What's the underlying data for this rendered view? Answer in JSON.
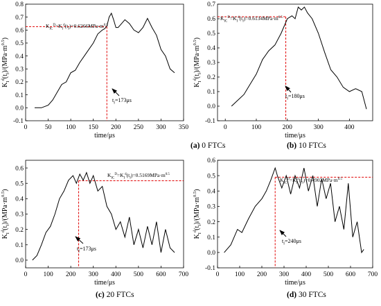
{
  "figure": {
    "panels": [
      {
        "caption_letter": "(a)",
        "caption_text": " 0 FTCs"
      },
      {
        "caption_letter": "(b)",
        "caption_text": " 10 FTCs"
      },
      {
        "caption_letter": "(c)",
        "caption_text": " 20 FTCs"
      },
      {
        "caption_letter": "(d)",
        "caption_text": " 30 FTCs"
      }
    ]
  },
  "chart_data": [
    {
      "type": "line",
      "ylabel": "K_I^d(t_f)/(MPa·m^0.5)",
      "xlabel": "time/μs",
      "xlim": [
        0,
        350
      ],
      "ylim": [
        -0.1,
        0.8
      ],
      "xticks": [
        0,
        50,
        100,
        150,
        200,
        250,
        300,
        350
      ],
      "yticks": [
        -0.1,
        0.0,
        0.1,
        0.2,
        0.3,
        0.4,
        0.5,
        0.6,
        0.7,
        0.8
      ],
      "series": [
        {
          "x": [
            20,
            35,
            50,
            60,
            70,
            80,
            90,
            100,
            110,
            120,
            130,
            140,
            150,
            160,
            170,
            175,
            180,
            185,
            190,
            195,
            200,
            205,
            210,
            220,
            230,
            240,
            250,
            260,
            270,
            280,
            290,
            300,
            310,
            320,
            330
          ],
          "y": [
            0.0,
            0.0,
            0.02,
            0.06,
            0.12,
            0.18,
            0.2,
            0.27,
            0.29,
            0.35,
            0.4,
            0.45,
            0.5,
            0.57,
            0.6,
            0.61,
            0.63,
            0.7,
            0.73,
            0.68,
            0.62,
            0.62,
            0.64,
            0.68,
            0.65,
            0.6,
            0.58,
            0.62,
            0.69,
            0.62,
            0.56,
            0.45,
            0.4,
            0.3,
            0.27
          ]
        }
      ],
      "annotations": {
        "equation": "K_IC^D=K_I^d(t_f)=0.6266MPa·m^0.5",
        "tf_label": "t_f=173μs",
        "tf_x": 180,
        "kic_y": 0.6266
      }
    },
    {
      "type": "line",
      "ylabel": "K_I^d(t_f)/(MPa·m^0.5)",
      "xlabel": "time/μs",
      "xlim": [
        -25,
        475
      ],
      "ylim": [
        -0.1,
        0.7
      ],
      "xticks": [
        0,
        100,
        200,
        300,
        400
      ],
      "yticks": [
        -0.1,
        0.0,
        0.1,
        0.2,
        0.3,
        0.4,
        0.5,
        0.6,
        0.7
      ],
      "series": [
        {
          "x": [
            20,
            40,
            60,
            80,
            100,
            120,
            140,
            160,
            180,
            200,
            215,
            225,
            235,
            245,
            255,
            265,
            280,
            300,
            320,
            340,
            360,
            380,
            400,
            420,
            440,
            455
          ],
          "y": [
            0.0,
            0.04,
            0.08,
            0.15,
            0.22,
            0.32,
            0.38,
            0.42,
            0.5,
            0.6,
            0.62,
            0.6,
            0.68,
            0.66,
            0.68,
            0.64,
            0.6,
            0.5,
            0.37,
            0.25,
            0.2,
            0.13,
            0.1,
            0.12,
            0.1,
            -0.02
          ]
        }
      ],
      "annotations": {
        "equation": "K_IC^D=K_I^d(t_f)=0.6134MPa·m^0.5",
        "tf_label": "t_f=180μs",
        "tf_x": 195,
        "kic_y": 0.6134
      }
    },
    {
      "type": "line",
      "ylabel": "K_I^d(t_f)/(MPa·m^0.5)",
      "xlabel": "time/μs",
      "xlim": [
        0,
        700
      ],
      "ylim": [
        -0.05,
        0.65
      ],
      "xticks": [
        0,
        100,
        200,
        300,
        400,
        500,
        600,
        700
      ],
      "yticks": [
        0.0,
        0.1,
        0.2,
        0.3,
        0.4,
        0.5,
        0.6
      ],
      "series": [
        {
          "x": [
            30,
            50,
            70,
            90,
            110,
            130,
            150,
            170,
            190,
            210,
            225,
            240,
            255,
            270,
            285,
            300,
            320,
            340,
            360,
            380,
            400,
            420,
            440,
            460,
            480,
            500,
            520,
            540,
            560,
            580,
            600,
            620,
            640,
            660
          ],
          "y": [
            0.0,
            0.03,
            0.1,
            0.18,
            0.22,
            0.3,
            0.4,
            0.45,
            0.52,
            0.55,
            0.5,
            0.56,
            0.52,
            0.57,
            0.5,
            0.55,
            0.45,
            0.48,
            0.35,
            0.3,
            0.2,
            0.25,
            0.15,
            0.28,
            0.1,
            0.2,
            0.08,
            0.22,
            0.1,
            0.25,
            0.05,
            0.2,
            0.08,
            0.05
          ]
        }
      ],
      "annotations": {
        "equation": "K_IC^D=K_I^d(t_f)=0.5169MPa·m^0.5",
        "tf_label": "t_f=173μs",
        "tf_x": 235,
        "kic_y": 0.5169
      }
    },
    {
      "type": "line",
      "ylabel": "K_I^d(t_f)/(MPa·m^0.5)",
      "xlabel": "time/μs",
      "xlim": [
        0,
        700
      ],
      "ylim": [
        -0.1,
        0.6
      ],
      "xticks": [
        0,
        100,
        200,
        300,
        400,
        500,
        600,
        700
      ],
      "yticks": [
        -0.1,
        0.0,
        0.1,
        0.2,
        0.3,
        0.4,
        0.5,
        0.6
      ],
      "series": [
        {
          "x": [
            30,
            60,
            90,
            110,
            140,
            170,
            200,
            220,
            240,
            260,
            270,
            290,
            310,
            330,
            350,
            370,
            390,
            410,
            430,
            450,
            470,
            490,
            510,
            530,
            550,
            570,
            590,
            610,
            630,
            650,
            660
          ],
          "y": [
            0.0,
            0.05,
            0.15,
            0.13,
            0.22,
            0.3,
            0.35,
            0.4,
            0.47,
            0.55,
            0.5,
            0.42,
            0.5,
            0.38,
            0.5,
            0.42,
            0.55,
            0.4,
            0.5,
            0.3,
            0.48,
            0.35,
            0.45,
            0.2,
            0.3,
            0.15,
            0.45,
            0.1,
            0.2,
            0.0,
            0.02
          ]
        }
      ],
      "annotations": {
        "equation": "K_IC^D=K_I^d(t_f)=0.4902MPa·m^0.5",
        "tf_label": "t_f=240μs",
        "tf_x": 260,
        "kic_y": 0.4902
      }
    }
  ]
}
